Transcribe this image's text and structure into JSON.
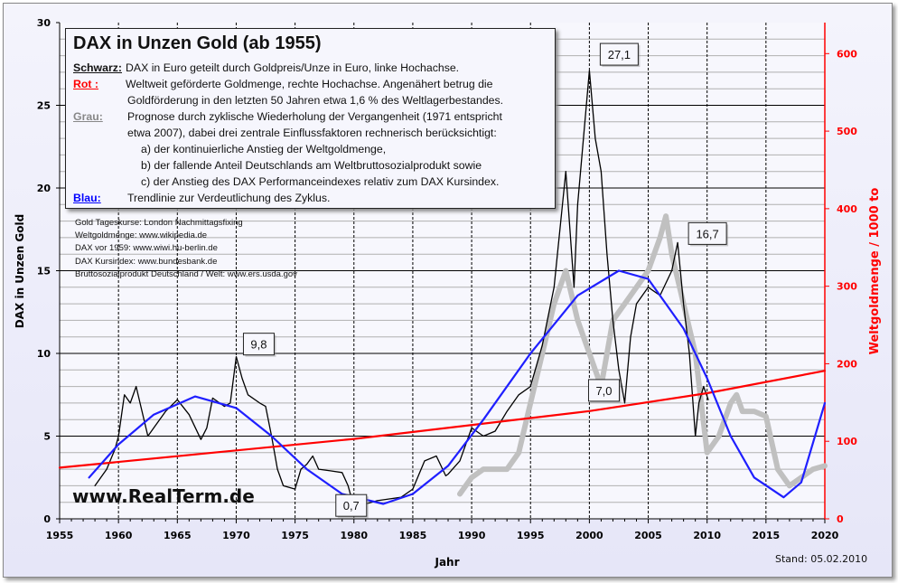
{
  "chart_data": {
    "type": "line",
    "title": "DAX in Unzen Gold   (ab 1955)",
    "xlabel": "Jahr",
    "ylabel": "DAX in Unzen Gold",
    "y2label": "Weltgoldmenge / 1000 to",
    "xlim": [
      1955,
      2020
    ],
    "ylim": [
      0,
      30
    ],
    "y2lim": [
      0,
      640
    ],
    "xticks": [
      "1955",
      "1960",
      "1965",
      "1970",
      "1975",
      "1980",
      "1985",
      "1990",
      "1995",
      "2000",
      "2005",
      "2010",
      "2015",
      "2020"
    ],
    "yticks": [
      "0",
      "5",
      "10",
      "15",
      "20",
      "25",
      "30"
    ],
    "y2ticks": [
      "0",
      "100",
      "200",
      "300",
      "400",
      "500",
      "600"
    ],
    "grid": true,
    "colors": {
      "dax": "#000000",
      "gold": "#ff0000",
      "forecast": "#c0c0c0",
      "trend": "#1f1fff"
    },
    "series": [
      {
        "key": "Schwarz",
        "axis": "left",
        "color": "#000000",
        "x": [
          1958,
          1959,
          1959.7,
          1960,
          1960.5,
          1961,
          1961.5,
          1962,
          1962.5,
          1963,
          1964,
          1965,
          1966,
          1967,
          1967.5,
          1968,
          1969,
          1969.5,
          1970,
          1970.5,
          1971,
          1972,
          1972.5,
          1973,
          1973.5,
          1974,
          1975,
          1975.5,
          1976,
          1976.5,
          1977,
          1978,
          1979,
          1979.5,
          1980,
          1981,
          1982,
          1983,
          1984,
          1985,
          1986,
          1987,
          1987.8,
          1988,
          1989,
          1990,
          1991,
          1992,
          1993,
          1994,
          1995,
          1996,
          1997,
          1998,
          1998.7,
          1999,
          2000,
          2000.5,
          2001,
          2001.5,
          2002,
          2002.5,
          2003,
          2003.5,
          2004,
          2005,
          2006,
          2007,
          2007.5,
          2008,
          2008.5,
          2009,
          2009.3,
          2009.7,
          2010.1
        ],
        "y": [
          2.0,
          3.0,
          4.2,
          5.0,
          7.5,
          7.0,
          8.0,
          6.5,
          5.0,
          5.5,
          6.5,
          7.2,
          6.3,
          4.8,
          5.5,
          7.3,
          6.8,
          7.0,
          9.8,
          8.5,
          7.5,
          7.0,
          6.8,
          5.0,
          3.0,
          2.0,
          1.8,
          3.0,
          3.3,
          3.8,
          3.0,
          2.9,
          2.8,
          2.0,
          0.7,
          0.9,
          1.1,
          1.2,
          1.3,
          1.8,
          3.5,
          3.8,
          2.6,
          2.7,
          3.5,
          5.5,
          5.0,
          5.3,
          6.5,
          7.5,
          8.0,
          10.5,
          14,
          21,
          14,
          19,
          27.1,
          23,
          21,
          16,
          12,
          9,
          7.0,
          11,
          13,
          14,
          13.5,
          15,
          16.7,
          13,
          10,
          5.0,
          7,
          8,
          7.2
        ]
      },
      {
        "key": "Grau",
        "axis": "left",
        "color": "#c0c0c0",
        "x": [
          1989,
          1990,
          1991,
          1993,
          1994,
          1995,
          1996,
          1997,
          1998,
          1999,
          2000,
          2001,
          2002,
          2003,
          2004,
          2005,
          2006,
          2006.5,
          2007,
          2008,
          2009,
          2010,
          2011,
          2012,
          2012.5,
          2013,
          2014,
          2015,
          2016,
          2017,
          2018,
          2019,
          2020
        ],
        "y": [
          1.5,
          2.5,
          3.0,
          3.0,
          4.0,
          7.0,
          10,
          13,
          15,
          12,
          10,
          8,
          12,
          13,
          14,
          15,
          17,
          18.3,
          16,
          13,
          10,
          4,
          5,
          7,
          7.5,
          6.5,
          6.5,
          6.2,
          3,
          2,
          2.5,
          3,
          3.2
        ]
      },
      {
        "key": "Rot",
        "axis": "right",
        "color": "#ff0000",
        "x": [
          1955,
          1980,
          2000,
          2010,
          2020
        ],
        "y": [
          66,
          103,
          139,
          162,
          191
        ]
      },
      {
        "key": "Blau",
        "axis": "left",
        "color": "#1f1fff",
        "x": [
          1957.5,
          1960,
          1963,
          1966.5,
          1970,
          1973,
          1976,
          1979,
          1982.5,
          1985,
          1988,
          1991,
          1995,
          1999,
          2002.5,
          2005,
          2008,
          2010,
          2012,
          2014,
          2016.5,
          2018,
          2020
        ],
        "y": [
          2.5,
          4.5,
          6.3,
          7.4,
          6.7,
          5.0,
          3.0,
          1.5,
          0.9,
          1.5,
          3.2,
          6.0,
          10,
          13.5,
          15.0,
          14.5,
          11.5,
          8.5,
          5.0,
          2.5,
          1.3,
          2.2,
          7.0
        ]
      }
    ],
    "annotations": [
      {
        "text": "27,1",
        "x": 2000,
        "y": 27.1
      },
      {
        "text": "16,7",
        "x": 2007.5,
        "y": 16.7
      },
      {
        "text": "9,8",
        "x": 1970,
        "y": 9.8
      },
      {
        "text": "0,7",
        "x": 1980,
        "y": 0.7
      },
      {
        "text": "7,0",
        "x": 2003,
        "y": 7.0
      }
    ]
  },
  "legend": {
    "title": "DAX in Unzen Gold   (ab 1955)",
    "schwarz_key": "Schwarz:",
    "schwarz_text": "DAX in Euro geteilt durch Goldpreis/Unze in Euro, linke Hochachse.",
    "rot_key": "Rot :",
    "rot_text1": "Weltweit geförderte Goldmenge, rechte Hochachse. Angenähert betrug die",
    "rot_text2": "Goldförderung in den letzten 50 Jahren etwa  1,6 %  des Weltlagerbestandes.",
    "grau_key": "Grau:",
    "grau_text1": "Prognose durch zyklische Wiederholung der Vergangenheit (1971 entspricht",
    "grau_text2": "etwa 2007),  dabei drei zentrale Einflussfaktoren rechnerisch berücksichtigt:",
    "grau_a": "a) der kontinuierliche Anstieg der Weltgoldmenge,",
    "grau_b": "b) der fallende Anteil Deutschlands am Weltbruttosozialprodukt sowie",
    "grau_c": "c) der Anstieg des DAX Performanceindexes relativ zum DAX Kursindex.",
    "blau_key": "Blau:",
    "blau_text": "Trendlinie zur Verdeutlichung des Zyklus."
  },
  "sources": [
    "Gold Tageskurse: London Nachmittagsfixing",
    "Weltgoldmenge: www.wikipedia.de",
    "DAX vor 1959:  www.wiwi.hu-berlin.de",
    "DAX Kursindex: www.bundesbank.de",
    "Bruttosozialprodukt Deutschland / Welt: www.ers.usda.gov"
  ],
  "site": "www.RealTerm.de",
  "watermark": "RealTerm.de",
  "stand": "Stand:  05.02.2010"
}
